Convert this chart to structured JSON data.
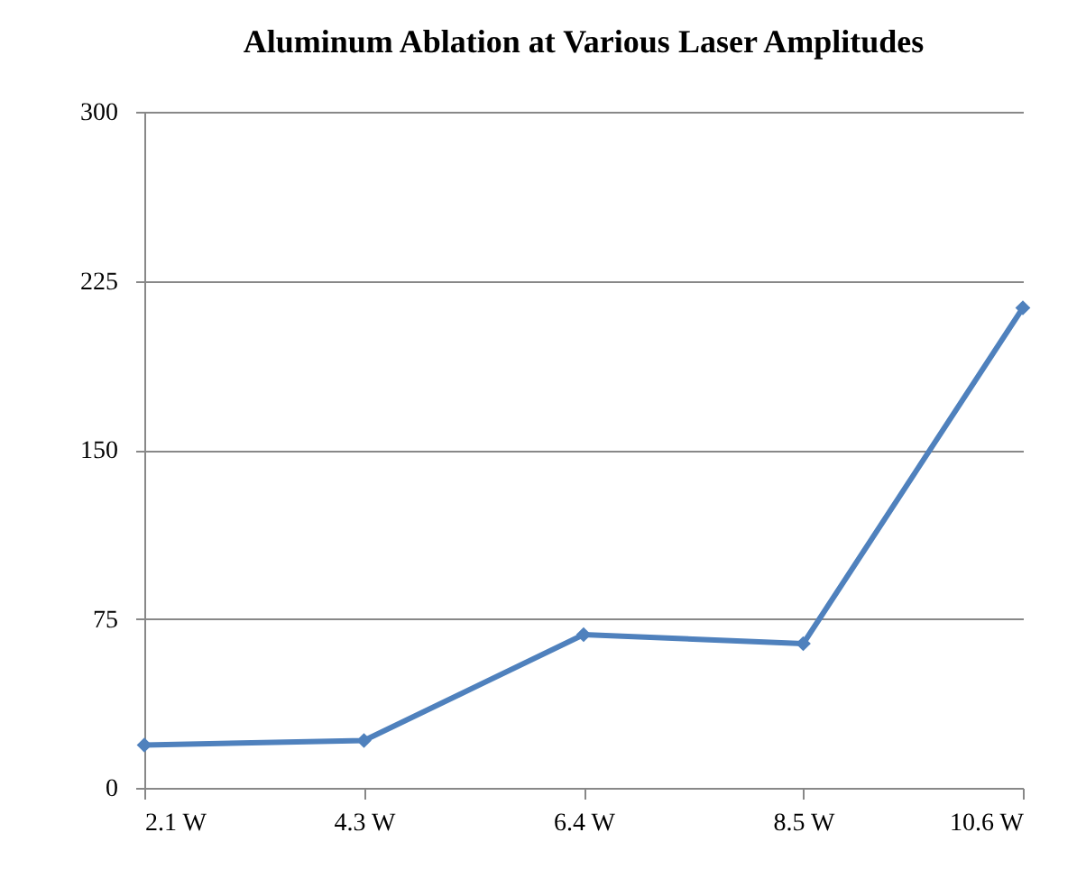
{
  "chart_data": {
    "type": "line",
    "title": "Aluminum Ablation at Various Laser Amplitudes",
    "categories": [
      "2.1 W",
      "4.3 W",
      "6.4 W",
      "8.5 W",
      "10.6 W"
    ],
    "series": [
      {
        "color": "#4f81bd",
        "values": [
          19,
          21,
          68,
          64,
          213
        ]
      }
    ],
    "ylim": [
      0,
      300
    ],
    "yticks": [
      0,
      75,
      150,
      225,
      300
    ],
    "grid": "y",
    "marker": "diamond",
    "line_style": "solid",
    "legend": false
  }
}
